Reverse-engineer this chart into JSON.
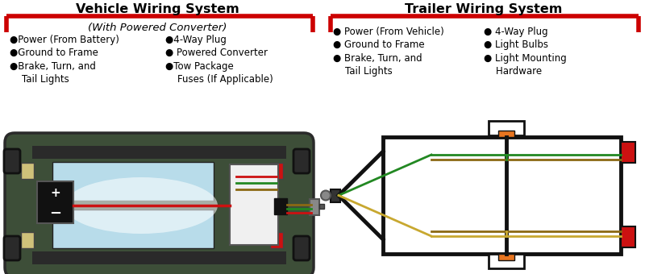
{
  "left_title": "Vehicle Wiring System",
  "left_subtitle": "(With Powered Converter)",
  "left_col1": [
    "●Power (From Battery)",
    "●Ground to Frame",
    "●Brake, Turn, and\n    Tail Lights"
  ],
  "left_col2": [
    "●4-Way Plug",
    "● Powered Converter",
    "●Tow Package\n    Fuses (If Applicable)"
  ],
  "right_title": "Trailer Wiring System",
  "right_col1": [
    "● Power (From Vehicle)",
    "● Ground to Frame",
    "● Brake, Turn, and\n    Tail Lights"
  ],
  "right_col2": [
    "● 4-Way Plug",
    "● Light Bulbs",
    "● Light Mounting\n    Hardware"
  ],
  "red_color": "#cc0000",
  "bg_color": "#ffffff",
  "text_color": "#000000",
  "title_fontsize": 11.5,
  "subtitle_fontsize": 9.5,
  "bullet_fontsize": 8.5
}
